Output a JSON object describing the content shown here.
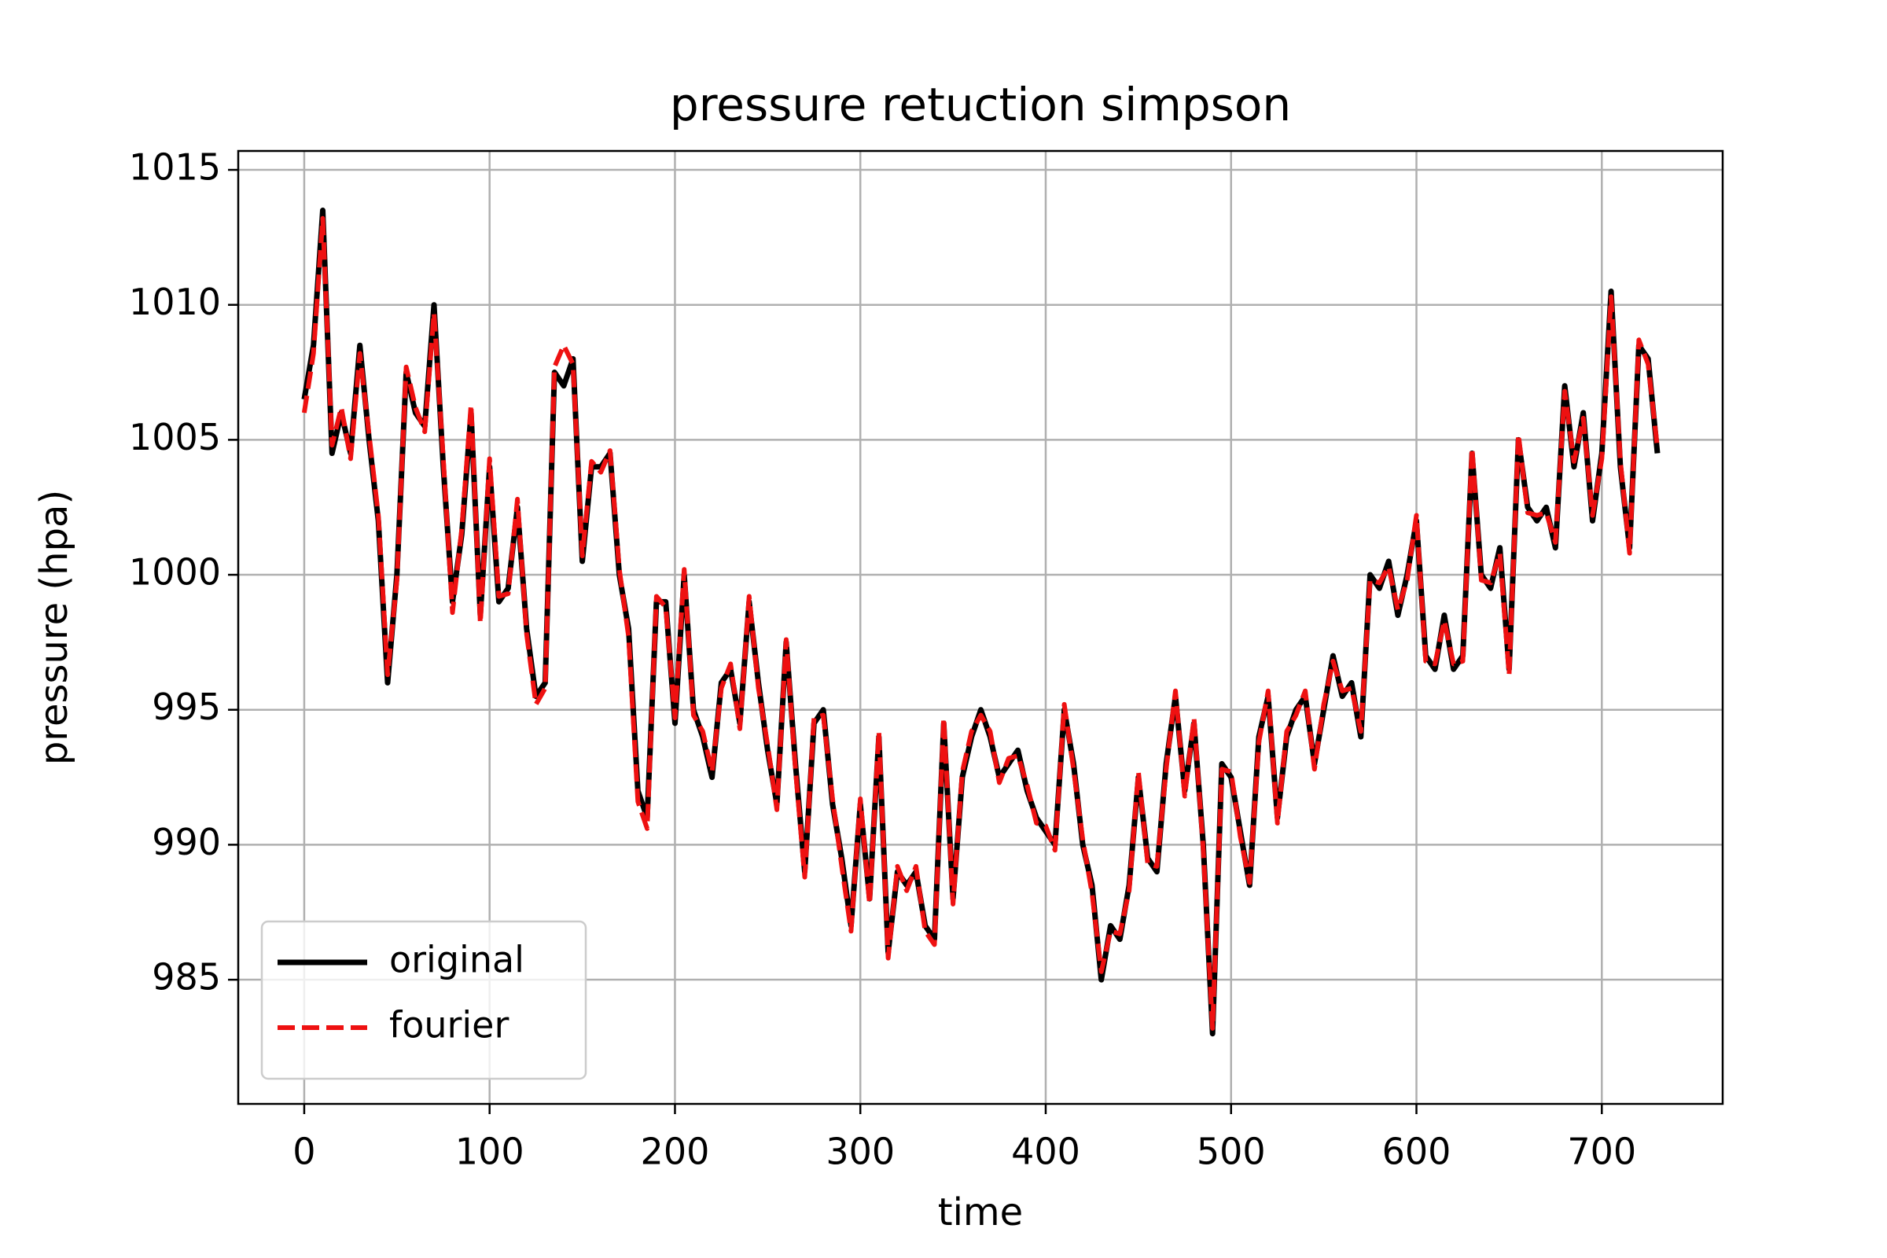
{
  "chart_data": {
    "type": "line",
    "title": "pressure retuction simpson",
    "xlabel": "time",
    "ylabel": "pressure (hpa)",
    "x": [
      0,
      5,
      10,
      15,
      20,
      25,
      30,
      35,
      40,
      45,
      50,
      55,
      60,
      65,
      70,
      75,
      80,
      85,
      90,
      95,
      100,
      105,
      110,
      115,
      120,
      125,
      130,
      135,
      140,
      145,
      150,
      155,
      160,
      165,
      170,
      175,
      180,
      185,
      190,
      195,
      200,
      205,
      210,
      215,
      220,
      225,
      230,
      235,
      240,
      245,
      250,
      255,
      260,
      265,
      270,
      275,
      280,
      285,
      290,
      295,
      300,
      305,
      310,
      315,
      320,
      325,
      330,
      335,
      340,
      345,
      350,
      355,
      360,
      365,
      370,
      375,
      380,
      385,
      390,
      395,
      400,
      405,
      410,
      415,
      420,
      425,
      430,
      435,
      440,
      445,
      450,
      455,
      460,
      465,
      470,
      475,
      480,
      485,
      490,
      495,
      500,
      505,
      510,
      515,
      520,
      525,
      530,
      535,
      540,
      545,
      550,
      555,
      560,
      565,
      570,
      575,
      580,
      585,
      590,
      595,
      600,
      605,
      610,
      615,
      620,
      625,
      630,
      635,
      640,
      645,
      650,
      655,
      660,
      665,
      670,
      675,
      680,
      685,
      690,
      695,
      700,
      705,
      710,
      715,
      720,
      725,
      730
    ],
    "series": [
      {
        "name": "original",
        "color": "#000000",
        "dash": false,
        "values": [
          1006.5,
          1008.5,
          1013.5,
          1004.5,
          1006,
          1004.5,
          1008.5,
          1005,
          1002,
          996,
          1000,
          1007.5,
          1006,
          1005.5,
          1010,
          1004,
          999,
          1001.5,
          1006,
          998.5,
          1004,
          999,
          999.5,
          1002.5,
          998,
          995.5,
          996,
          1007.5,
          1007,
          1008,
          1000.5,
          1004,
          1004,
          1004.5,
          1000,
          998,
          992,
          991,
          999,
          999,
          994.5,
          1000,
          995,
          994,
          992.5,
          996,
          996.5,
          994.5,
          999,
          996,
          993.5,
          991.5,
          997.5,
          993,
          989,
          994.5,
          995,
          991.5,
          989.5,
          987,
          991.5,
          988,
          994,
          986,
          989,
          988.5,
          989,
          987,
          986.5,
          994.5,
          988,
          992.5,
          994,
          995,
          994,
          992.5,
          993,
          993.5,
          992,
          991,
          990.5,
          990,
          995,
          993,
          990,
          988.5,
          985,
          987,
          986.5,
          988.5,
          992.5,
          989.5,
          989,
          993,
          995.5,
          992,
          994.5,
          990,
          983,
          993,
          992.5,
          990.5,
          988.5,
          994,
          995.5,
          991,
          994,
          995,
          995.5,
          993,
          995,
          997,
          995.5,
          996,
          994,
          1000,
          999.5,
          1000.5,
          998.5,
          1000,
          1002,
          997,
          996.5,
          998.5,
          996.5,
          997,
          1004.5,
          1000,
          999.5,
          1001,
          996.5,
          1005,
          1002.5,
          1002,
          1002.5,
          1001,
          1007,
          1004,
          1006,
          1002,
          1004.5,
          1010.5,
          1004,
          1001,
          1008.5,
          1008,
          1004.5
        ]
      },
      {
        "name": "fourier",
        "color": "#ee1111",
        "dash": true,
        "values": [
          1006,
          1008.2,
          1013.2,
          1004.8,
          1006.2,
          1004.3,
          1008.2,
          1005.2,
          1002.2,
          996.3,
          999.8,
          1007.7,
          1006.2,
          1005.3,
          1009.7,
          1004.3,
          998.6,
          1001.7,
          1006.3,
          998.2,
          1004.3,
          999.2,
          999.3,
          1002.8,
          997.8,
          995.2,
          995.8,
          1007.7,
          1008.5,
          1007.8,
          1000.7,
          1004.2,
          1003.8,
          1004.6,
          1000.2,
          997.7,
          991.6,
          990.6,
          999.2,
          998.8,
          994.7,
          1000.2,
          994.8,
          994.2,
          992.7,
          995.8,
          996.7,
          994.3,
          999.2,
          995.8,
          993.7,
          991.3,
          997.6,
          992.8,
          988.8,
          994.7,
          994.8,
          991.7,
          989.2,
          986.8,
          991.7,
          987.8,
          994.2,
          985.8,
          989.2,
          988.3,
          989.2,
          986.8,
          986.3,
          994.7,
          987.8,
          992.7,
          994.2,
          994.8,
          994.2,
          992.3,
          993.2,
          993.3,
          992.2,
          990.8,
          990.7,
          989.8,
          995.2,
          992.8,
          990.2,
          988.2,
          985.3,
          986.8,
          986.7,
          988.3,
          992.7,
          989.3,
          989.2,
          992.8,
          995.7,
          991.8,
          994.7,
          989.8,
          983.2,
          992.8,
          992.7,
          990.3,
          988.6,
          993.8,
          995.7,
          990.8,
          994.2,
          994.8,
          995.7,
          992.8,
          995.2,
          996.8,
          995.7,
          995.8,
          994.2,
          999.8,
          999.7,
          1000.3,
          998.7,
          999.8,
          1002.2,
          996.8,
          996.7,
          998.3,
          996.7,
          996.8,
          1004.7,
          999.8,
          999.7,
          1000.8,
          996.3,
          1005.2,
          1002.3,
          1002.2,
          1002.3,
          1001.2,
          1006.8,
          1004.2,
          1005.8,
          1002.2,
          1004.3,
          1010.3,
          1004.2,
          1000.8,
          1008.7,
          1007.8,
          1004.7
        ]
      }
    ],
    "xlim": [
      -35.6,
      765.2
    ],
    "ylim": [
      980.4,
      1015.7
    ],
    "xticks": [
      0,
      100,
      200,
      300,
      400,
      500,
      600,
      700
    ],
    "yticks": [
      985,
      990,
      995,
      1000,
      1005,
      1010,
      1015
    ],
    "grid": true,
    "legend": "lower left"
  }
}
